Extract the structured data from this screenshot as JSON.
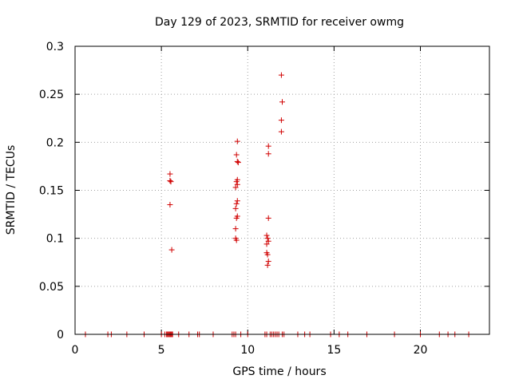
{
  "chart_data": {
    "type": "scatter",
    "title": "Day 129 of 2023, SRMTID for receiver owmg",
    "xlabel": "GPS time / hours",
    "ylabel": "SRMTID / TECUs",
    "xlim": [
      0,
      24
    ],
    "ylim": [
      0,
      0.3
    ],
    "xticks": [
      0,
      5,
      10,
      15,
      20
    ],
    "xtick_labels": [
      "0",
      "5",
      "10",
      "15",
      "20"
    ],
    "yticks": [
      0,
      0.05,
      0.1,
      0.15,
      0.2,
      0.25,
      0.3
    ],
    "ytick_labels": [
      "0",
      "0.05",
      "0.1",
      "0.15",
      "0.2",
      "0.25",
      "0.3"
    ],
    "grid": true,
    "marker": "+",
    "color": "#d00000",
    "series": [
      {
        "name": "SRMTID",
        "points": [
          [
            0.6,
            0
          ],
          [
            1.9,
            0
          ],
          [
            2.1,
            0
          ],
          [
            3.0,
            0
          ],
          [
            4.0,
            0
          ],
          [
            5.0,
            0
          ],
          [
            5.2,
            0
          ],
          [
            5.3,
            0
          ],
          [
            5.35,
            0
          ],
          [
            5.4,
            0
          ],
          [
            5.45,
            0
          ],
          [
            5.5,
            0
          ],
          [
            5.55,
            0
          ],
          [
            5.6,
            0
          ],
          [
            5.65,
            0
          ],
          [
            6.0,
            0
          ],
          [
            6.6,
            0
          ],
          [
            7.1,
            0
          ],
          [
            7.2,
            0
          ],
          [
            8.0,
            0
          ],
          [
            9.1,
            0
          ],
          [
            9.2,
            0
          ],
          [
            9.3,
            0
          ],
          [
            9.6,
            0
          ],
          [
            10.0,
            0
          ],
          [
            11.0,
            0
          ],
          [
            11.1,
            0
          ],
          [
            11.3,
            0
          ],
          [
            11.4,
            0
          ],
          [
            11.5,
            0
          ],
          [
            11.6,
            0
          ],
          [
            11.7,
            0
          ],
          [
            11.8,
            0
          ],
          [
            12.0,
            0
          ],
          [
            12.1,
            0
          ],
          [
            12.9,
            0
          ],
          [
            13.3,
            0
          ],
          [
            13.6,
            0
          ],
          [
            14.8,
            0
          ],
          [
            15.3,
            0
          ],
          [
            15.8,
            0
          ],
          [
            16.9,
            0
          ],
          [
            18.5,
            0
          ],
          [
            20.0,
            0
          ],
          [
            21.1,
            0
          ],
          [
            21.6,
            0
          ],
          [
            22.0,
            0
          ],
          [
            22.8,
            0
          ],
          [
            5.5,
            0.167
          ],
          [
            5.5,
            0.16
          ],
          [
            5.55,
            0.159
          ],
          [
            5.5,
            0.135
          ],
          [
            5.6,
            0.088
          ],
          [
            9.4,
            0.201
          ],
          [
            9.35,
            0.187
          ],
          [
            9.4,
            0.18
          ],
          [
            9.45,
            0.179
          ],
          [
            9.4,
            0.161
          ],
          [
            9.35,
            0.159
          ],
          [
            9.4,
            0.156
          ],
          [
            9.3,
            0.153
          ],
          [
            9.4,
            0.139
          ],
          [
            9.35,
            0.136
          ],
          [
            9.3,
            0.131
          ],
          [
            9.4,
            0.123
          ],
          [
            9.35,
            0.121
          ],
          [
            9.3,
            0.11
          ],
          [
            9.3,
            0.1
          ],
          [
            9.35,
            0.098
          ],
          [
            11.2,
            0.196
          ],
          [
            11.2,
            0.188
          ],
          [
            11.2,
            0.121
          ],
          [
            11.1,
            0.103
          ],
          [
            11.15,
            0.1
          ],
          [
            11.2,
            0.097
          ],
          [
            11.1,
            0.094
          ],
          [
            11.1,
            0.085
          ],
          [
            11.15,
            0.083
          ],
          [
            11.2,
            0.076
          ],
          [
            11.15,
            0.072
          ],
          [
            11.95,
            0.27
          ],
          [
            12.0,
            0.242
          ],
          [
            11.95,
            0.223
          ],
          [
            11.95,
            0.211
          ]
        ]
      }
    ]
  }
}
